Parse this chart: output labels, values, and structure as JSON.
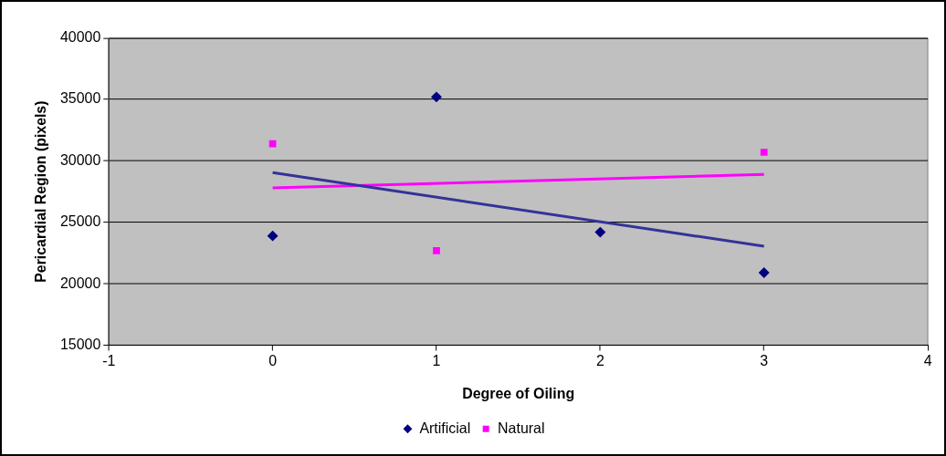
{
  "chart_data": {
    "type": "scatter",
    "xlabel": "Degree of Oiling",
    "ylabel": "Pericardial Region (pixels)",
    "xlim": [
      -1,
      4
    ],
    "xticks": [
      -1,
      0,
      1,
      2,
      3,
      4
    ],
    "ylim": [
      15000,
      40000
    ],
    "yticks": [
      15000,
      20000,
      25000,
      30000,
      35000,
      40000
    ],
    "grid": "y",
    "legend": "bottom",
    "series": [
      {
        "name": "Artificial",
        "marker": "diamond",
        "color": "#000080",
        "x": [
          0,
          1,
          2,
          3
        ],
        "values": [
          23900,
          35200,
          24200,
          20900
        ]
      },
      {
        "name": "Natural",
        "marker": "square",
        "color": "#ff00ff",
        "x": [
          0,
          1,
          3
        ],
        "values": [
          31400,
          22700,
          30700
        ]
      },
      {
        "type": "line",
        "marker": "none",
        "color": "#333399",
        "x": [
          0,
          3
        ],
        "values": [
          29050,
          23050
        ]
      },
      {
        "type": "line",
        "marker": "none",
        "color": "#ff00ff",
        "x": [
          0,
          3
        ],
        "values": [
          27800,
          28900
        ]
      }
    ]
  }
}
